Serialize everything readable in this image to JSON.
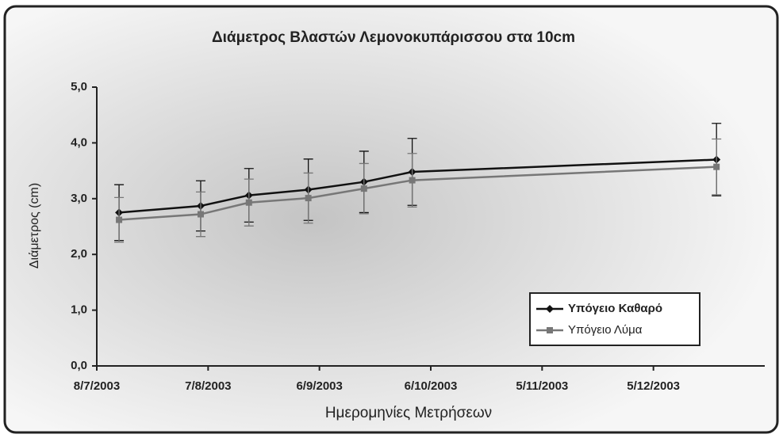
{
  "chart_data": {
    "type": "line",
    "title": "Διάμετρος Βλαστών Λεμονοκυπάρισσου στα 10cm",
    "x_label": "Ημερομηνίες Μετρήσεων",
    "y_label": "Διάμετρος (cm)",
    "x": [
      "2003-07-14",
      "2003-08-05",
      "2003-08-18",
      "2003-09-03",
      "2003-09-18",
      "2003-10-01",
      "2003-12-22"
    ],
    "series": [
      {
        "name": "Υπόγειο Καθαρό",
        "color": "#111111",
        "marker": "diamond",
        "values": [
          2.75,
          2.87,
          3.06,
          3.16,
          3.3,
          3.48,
          3.7
        ],
        "errors": [
          0.5,
          0.45,
          0.48,
          0.55,
          0.55,
          0.6,
          0.65
        ]
      },
      {
        "name": "Υπόγειο Λύμα",
        "color": "#777777",
        "marker": "square",
        "values": [
          2.62,
          2.72,
          2.93,
          3.01,
          3.18,
          3.33,
          3.57
        ],
        "errors": [
          0.4,
          0.4,
          0.42,
          0.45,
          0.45,
          0.48,
          0.5
        ]
      }
    ],
    "xlim": [
      "2003-07-08",
      "2004-01-04"
    ],
    "xticks": [
      {
        "value": "2003-07-08",
        "label": "8/7/2003"
      },
      {
        "value": "2003-08-07",
        "label": "7/8/2003"
      },
      {
        "value": "2003-09-06",
        "label": "6/9/2003"
      },
      {
        "value": "2003-10-06",
        "label": "6/10/2003"
      },
      {
        "value": "2003-11-05",
        "label": "5/11/2003"
      },
      {
        "value": "2003-12-05",
        "label": "5/12/2003"
      }
    ],
    "ylim": [
      0,
      5
    ],
    "yticks": [
      {
        "value": 0,
        "label": "0,0"
      },
      {
        "value": 1,
        "label": "1,0"
      },
      {
        "value": 2,
        "label": "2,0"
      },
      {
        "value": 3,
        "label": "3,0"
      },
      {
        "value": 4,
        "label": "4,0"
      },
      {
        "value": 5,
        "label": "5,0"
      }
    ],
    "legend": "lower right"
  }
}
